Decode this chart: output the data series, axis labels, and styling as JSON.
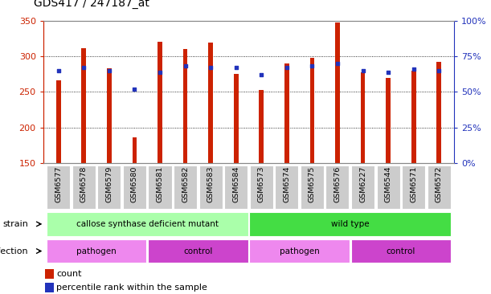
{
  "title": "GDS417 / 247187_at",
  "samples": [
    "GSM6577",
    "GSM6578",
    "GSM6579",
    "GSM6580",
    "GSM6581",
    "GSM6582",
    "GSM6583",
    "GSM6584",
    "GSM6573",
    "GSM6574",
    "GSM6575",
    "GSM6576",
    "GSM6227",
    "GSM6544",
    "GSM6571",
    "GSM6572"
  ],
  "bar_values": [
    266,
    311,
    283,
    186,
    320,
    310,
    319,
    275,
    253,
    290,
    298,
    347,
    278,
    270,
    280,
    292
  ],
  "percentile_values": [
    65,
    67,
    65,
    52,
    64,
    68,
    67,
    67,
    62,
    67,
    68,
    70,
    65,
    64,
    66,
    65
  ],
  "ymin": 150,
  "ymax": 350,
  "yticks_left": [
    150,
    200,
    250,
    300,
    350
  ],
  "yticks_right": [
    0,
    25,
    50,
    75,
    100
  ],
  "bar_color": "#CC2200",
  "percentile_color": "#2233BB",
  "bar_width": 0.18,
  "strain_groups": [
    {
      "text": "callose synthase deficient mutant",
      "start": 0,
      "end": 8,
      "color": "#AAFFAA"
    },
    {
      "text": "wild type",
      "start": 8,
      "end": 16,
      "color": "#44DD44"
    }
  ],
  "infection_groups": [
    {
      "text": "pathogen",
      "start": 0,
      "end": 4,
      "color": "#EE88EE"
    },
    {
      "text": "control",
      "start": 4,
      "end": 8,
      "color": "#CC44CC"
    },
    {
      "text": "pathogen",
      "start": 8,
      "end": 12,
      "color": "#EE88EE"
    },
    {
      "text": "control",
      "start": 12,
      "end": 16,
      "color": "#CC44CC"
    }
  ],
  "ylabel_color": "#CC2200",
  "right_ylabel_color": "#2233BB",
  "sample_box_color": "#CCCCCC",
  "background_color": "#FFFFFF"
}
